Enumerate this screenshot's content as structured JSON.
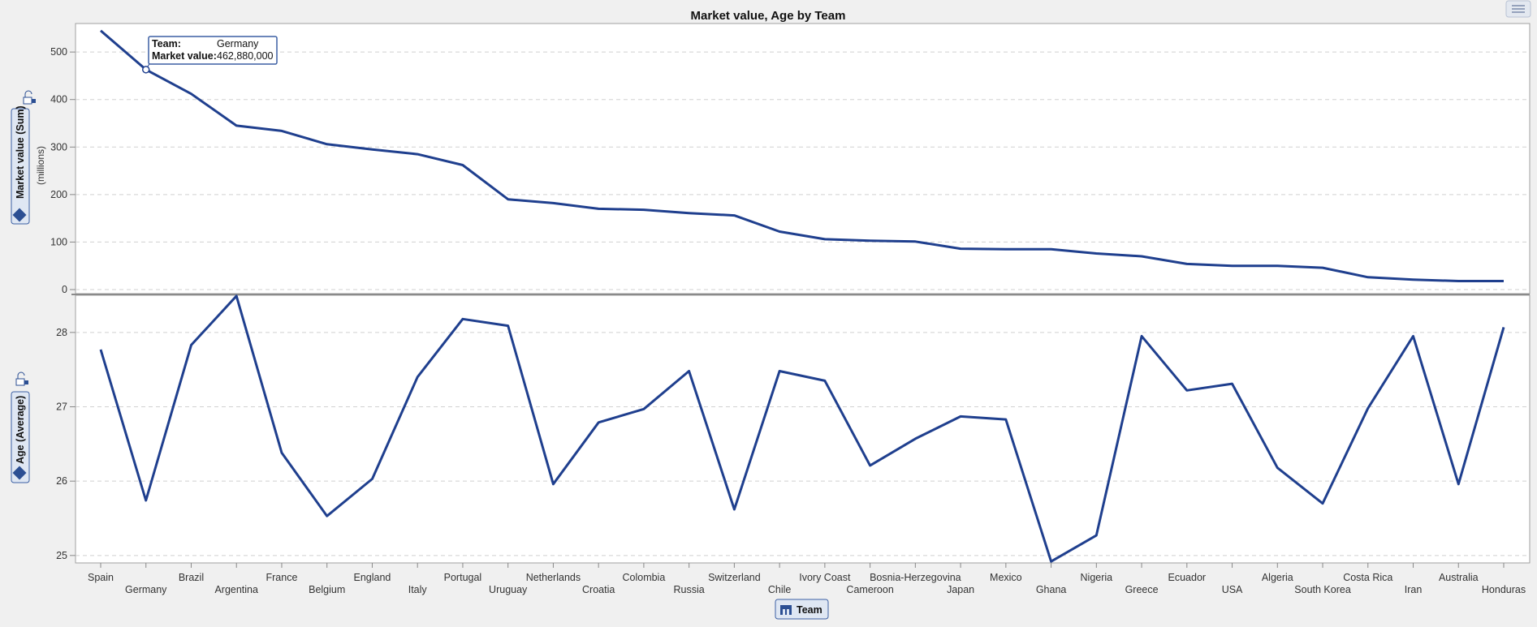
{
  "chart_data": {
    "type": "line",
    "title": "Market value, Age by Team",
    "xlabel": "Team",
    "categories": [
      "Spain",
      "Germany",
      "Brazil",
      "Argentina",
      "France",
      "Belgium",
      "England",
      "Italy",
      "Portugal",
      "Uruguay",
      "Netherlands",
      "Croatia",
      "Colombia",
      "Russia",
      "Switzerland",
      "Chile",
      "Ivory Coast",
      "Cameroon",
      "Bosnia-Herzegovina",
      "Japan",
      "Mexico",
      "Ghana",
      "Nigeria",
      "Greece",
      "Ecuador",
      "USA",
      "Algeria",
      "South Korea",
      "Costa Rica",
      "Iran",
      "Australia",
      "Honduras"
    ],
    "panels": [
      {
        "name": "market",
        "ylabel": "Market value (Sum)",
        "yunit": "(millions)",
        "ylim": [
          0,
          560
        ],
        "yticks": [
          0,
          100,
          200,
          300,
          400,
          500
        ],
        "grid": true,
        "values": [
          545,
          463,
          412,
          345,
          334,
          306,
          295,
          285,
          262,
          190,
          182,
          170,
          168,
          161,
          156,
          122,
          106,
          103,
          101,
          86,
          85,
          85,
          76,
          70,
          54,
          50,
          50,
          46,
          26,
          21,
          18,
          18
        ]
      },
      {
        "name": "age",
        "ylabel": "Age (Average)",
        "ylim": [
          24.9,
          28.5
        ],
        "yticks": [
          25,
          26,
          27,
          28
        ],
        "grid": true,
        "values": [
          27.77,
          25.74,
          27.83,
          28.49,
          26.38,
          25.53,
          26.03,
          27.4,
          28.18,
          28.09,
          25.96,
          26.79,
          26.97,
          27.48,
          25.62,
          27.48,
          27.35,
          26.21,
          26.57,
          26.87,
          26.83,
          24.92,
          25.27,
          27.95,
          27.22,
          27.31,
          26.18,
          25.7,
          26.98,
          27.95,
          25.96,
          28.07
        ]
      }
    ],
    "tooltip": {
      "team_key": "Team:",
      "team_value": "Germany",
      "value_key": "Market value:",
      "value_value": "462,880,000",
      "category": "Germany"
    },
    "colors": {
      "line": "#1f3f8e",
      "grid": "#d0d0d0",
      "plot_bg": "#ffffff"
    }
  }
}
